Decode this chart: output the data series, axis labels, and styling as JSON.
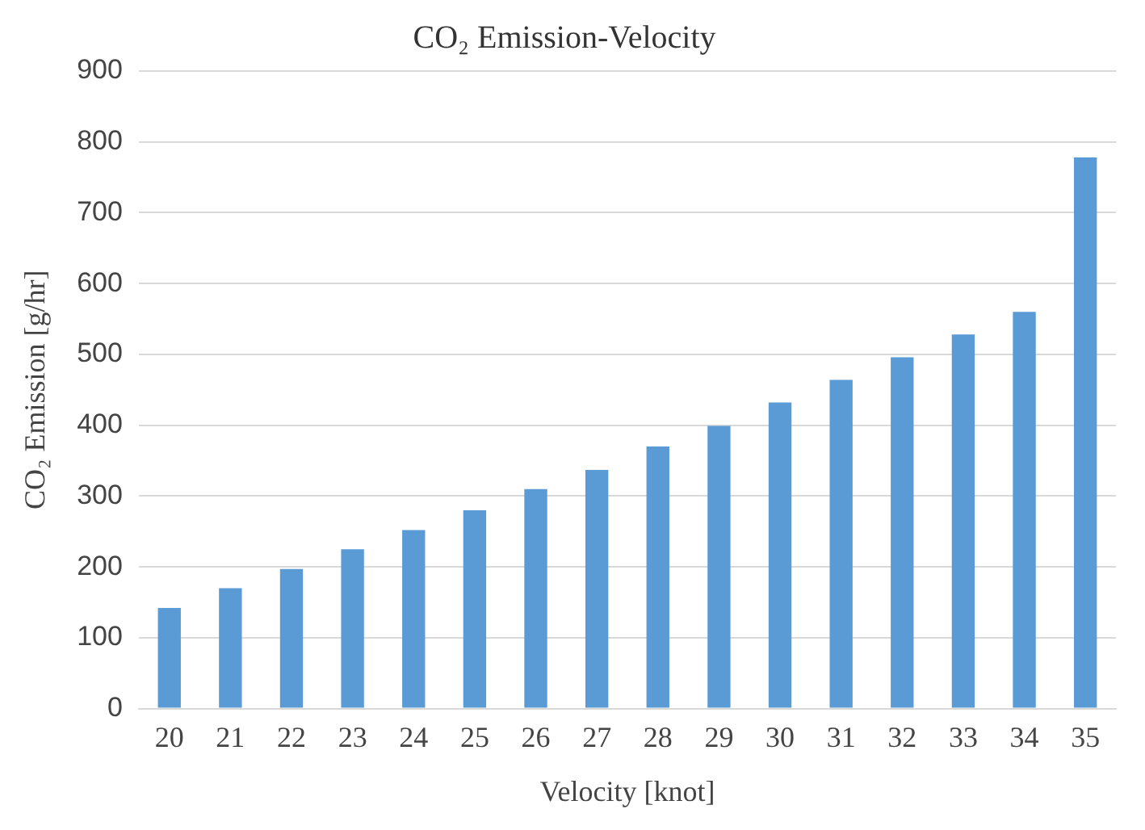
{
  "chart_data": {
    "type": "bar",
    "title": "CO₂ Emission-Velocity",
    "xlabel": "Velocity [knot]",
    "ylabel": "CO₂ Emission [g/hr]",
    "categories": [
      "20",
      "21",
      "22",
      "23",
      "24",
      "25",
      "26",
      "27",
      "28",
      "29",
      "30",
      "31",
      "32",
      "33",
      "34",
      "35"
    ],
    "values": [
      142,
      170,
      197,
      225,
      252,
      280,
      310,
      337,
      370,
      399,
      432,
      464,
      496,
      528,
      560,
      778
    ],
    "color": "#5b9bd5",
    "ylim": [
      0,
      900
    ],
    "yticks": [
      0,
      100,
      200,
      300,
      400,
      500,
      600,
      700,
      800,
      900
    ],
    "grid": "y",
    "legend": false
  }
}
